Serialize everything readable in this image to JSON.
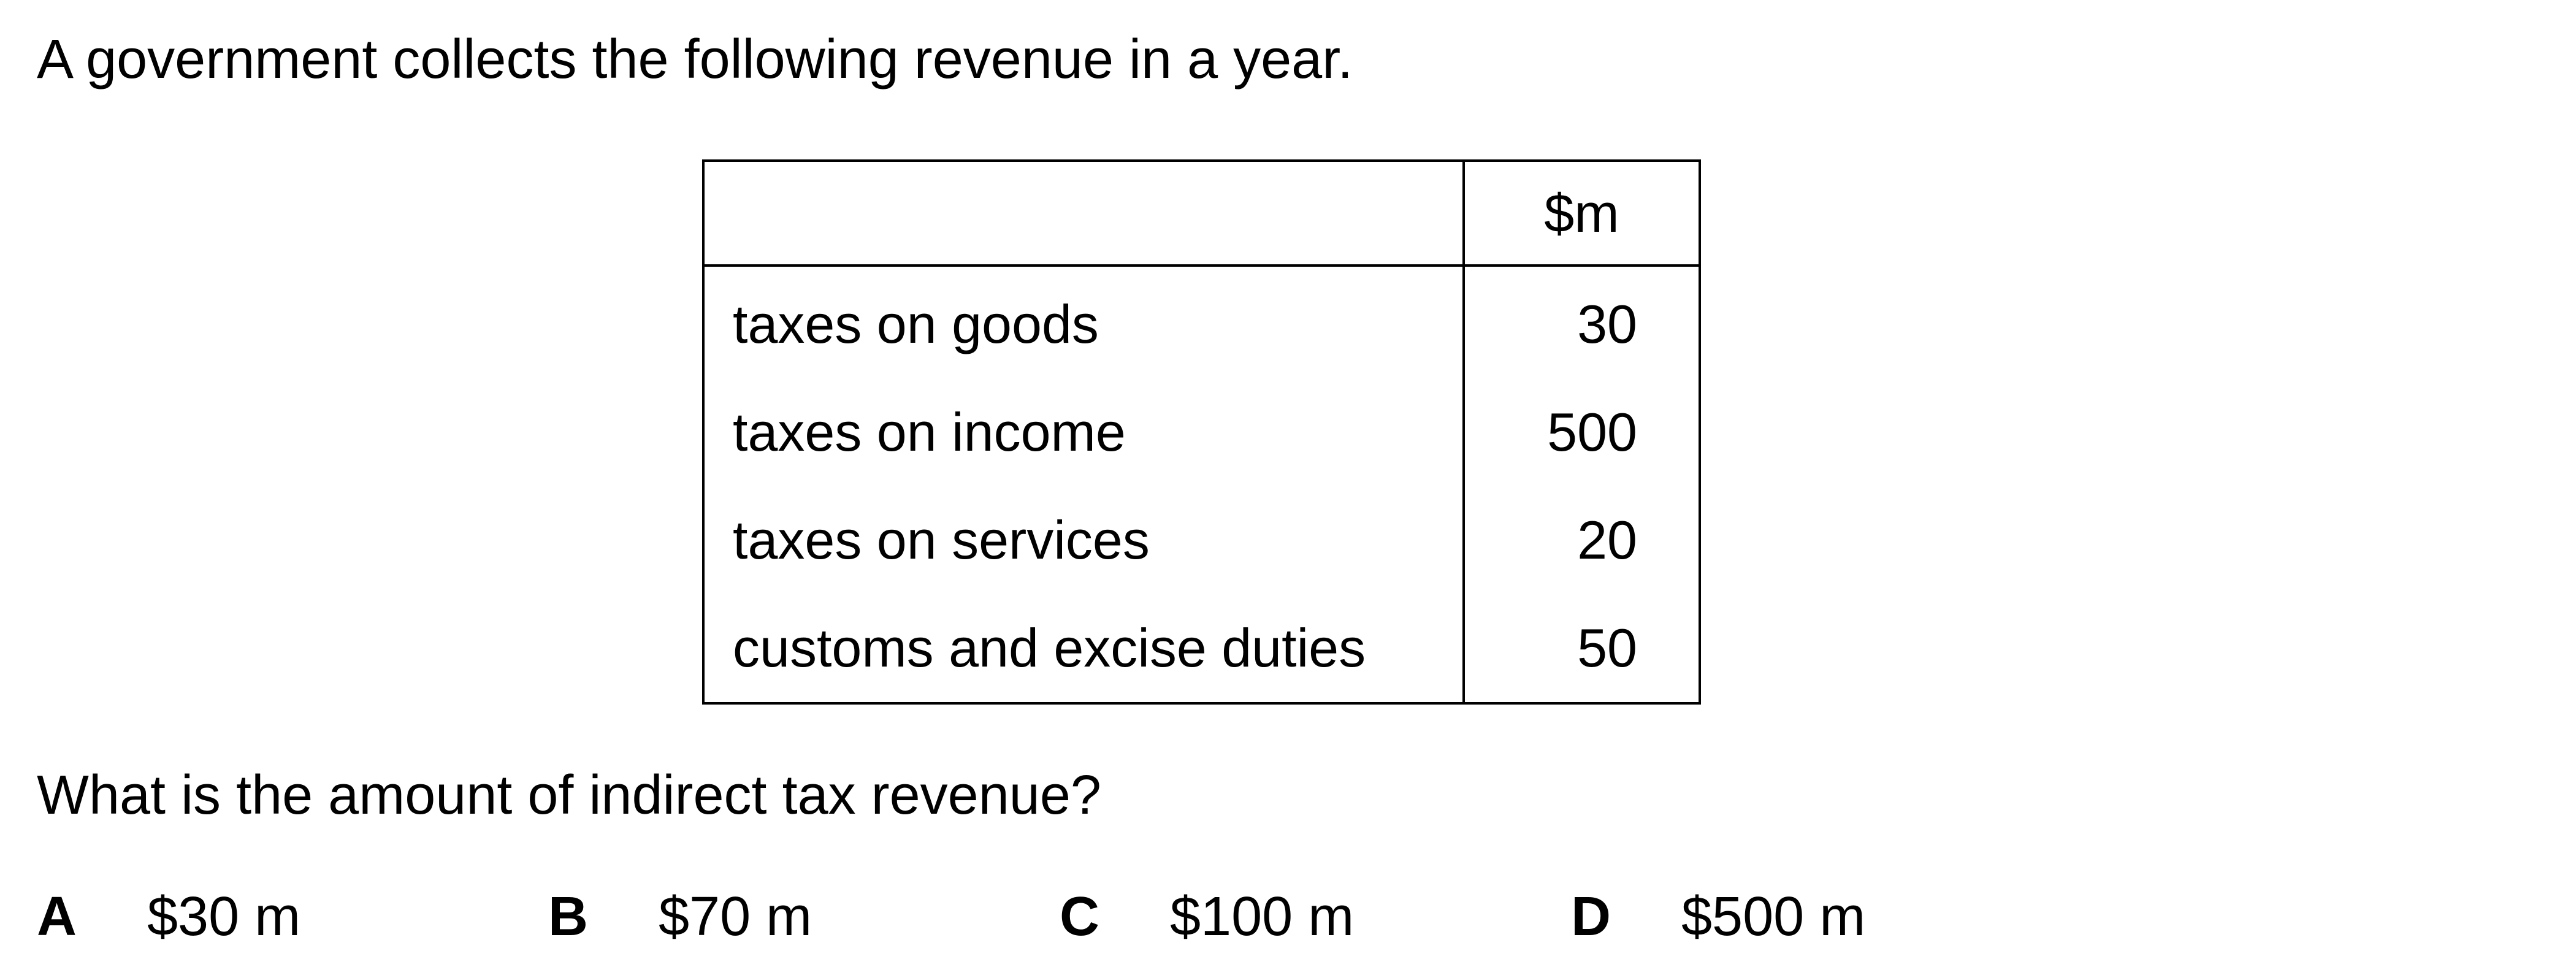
{
  "question": {
    "intro": "A government collects the following revenue in a year.",
    "prompt": "What is the amount of indirect tax revenue?"
  },
  "table": {
    "header": {
      "label": "",
      "unit": "$m"
    },
    "rows": [
      {
        "label": "taxes on goods",
        "value": "30"
      },
      {
        "label": "taxes on income",
        "value": "500"
      },
      {
        "label": "taxes on services",
        "value": "20"
      },
      {
        "label": "customs and excise duties",
        "value": "50"
      }
    ]
  },
  "options": [
    {
      "letter": "A",
      "text": "$30 m"
    },
    {
      "letter": "B",
      "text": "$70 m"
    },
    {
      "letter": "C",
      "text": "$100 m"
    },
    {
      "letter": "D",
      "text": "$500 m"
    }
  ]
}
